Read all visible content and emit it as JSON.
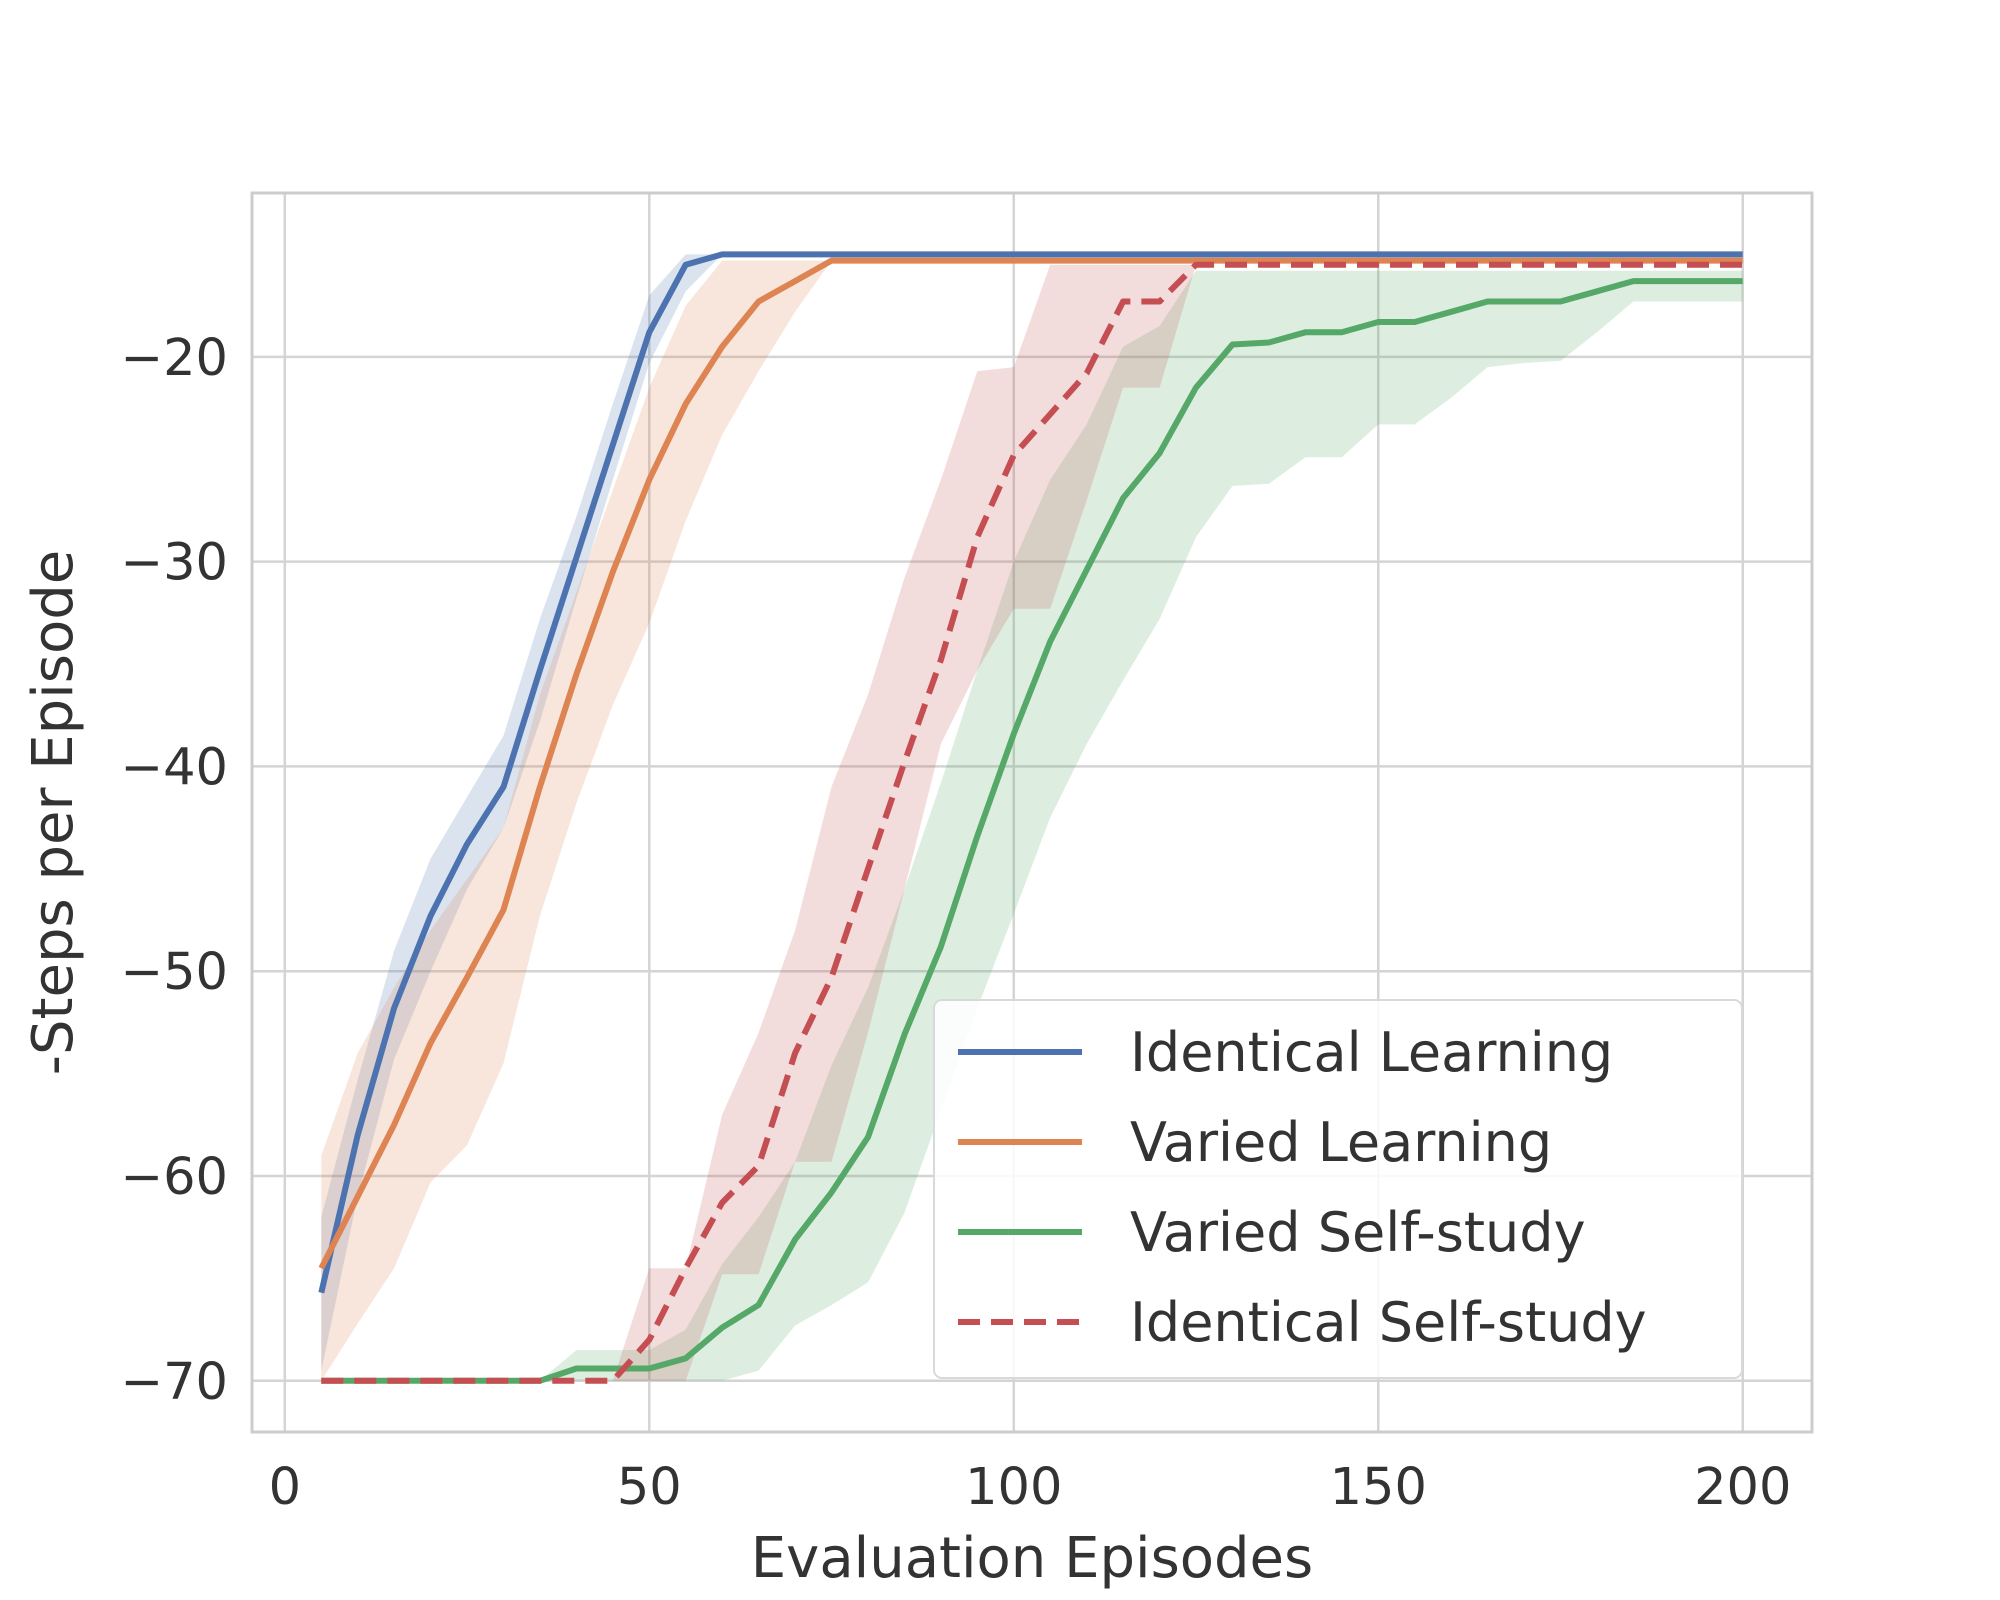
{
  "chart_data": {
    "type": "line",
    "xlabel": "Evaluation Episodes",
    "ylabel": "-Steps per Episode",
    "xlim": [
      -4.5,
      209.5
    ],
    "ylim": [
      -72.5,
      -12
    ],
    "x_ticks": [
      0,
      50,
      100,
      150,
      200
    ],
    "y_ticks": [
      -70,
      -60,
      -50,
      -40,
      -30,
      -20
    ],
    "x_tick_labels": [
      "0",
      "50",
      "100",
      "150",
      "200"
    ],
    "y_tick_labels": [
      "−70",
      "−60",
      "−50",
      "−40",
      "−30",
      "−20"
    ],
    "grid": true,
    "legend_position": "lower-right",
    "x": [
      5,
      10,
      15,
      20,
      25,
      30,
      35,
      40,
      45,
      50,
      55,
      60,
      65,
      70,
      75,
      80,
      85,
      90,
      95,
      100,
      105,
      110,
      115,
      120,
      125,
      130,
      135,
      140,
      145,
      150,
      155,
      160,
      165,
      170,
      175,
      180,
      185,
      190,
      195,
      200
    ],
    "series": [
      {
        "name": "Identical Learning",
        "color": "#4c72b0",
        "dash": false,
        "values": [
          -65.7,
          -58.0,
          -51.8,
          -47.3,
          -43.8,
          -41.0,
          -35.3,
          -29.8,
          -24.3,
          -18.8,
          -15.5,
          -15.0,
          -15.0,
          -15.0,
          -15.0,
          -15.0,
          -15.0,
          -15.0,
          -15.0,
          -15.0,
          -15.0,
          -15.0,
          -15.0,
          -15.0,
          -15.0,
          -15.0,
          -15.0,
          -15.0,
          -15.0,
          -15.0,
          -15.0,
          -15.0,
          -15.0,
          -15.0,
          -15.0,
          -15.0,
          -15.0,
          -15.0,
          -15.0,
          -15.0
        ],
        "lower": [
          -69.5,
          -61.0,
          -54.3,
          -50.0,
          -46.0,
          -43.0,
          -37.8,
          -31.8,
          -26.0,
          -20.3,
          -16.8,
          -15.0,
          -15.0,
          -15.0,
          -15.0,
          -15.0,
          -15.0,
          -15.0,
          -15.0,
          -15.0,
          -15.0,
          -15.0,
          -15.0,
          -15.0,
          -15.0,
          -15.0,
          -15.0,
          -15.0,
          -15.0,
          -15.0,
          -15.0,
          -15.0,
          -15.0,
          -15.0,
          -15.0,
          -15.0,
          -15.0,
          -15.0,
          -15.0,
          -15.0
        ],
        "upper": [
          -62.0,
          -55.3,
          -49.0,
          -44.5,
          -41.5,
          -38.5,
          -32.8,
          -27.8,
          -22.3,
          -17.0,
          -15.0,
          -15.0,
          -15.0,
          -15.0,
          -15.0,
          -15.0,
          -15.0,
          -15.0,
          -15.0,
          -15.0,
          -15.0,
          -15.0,
          -15.0,
          -15.0,
          -15.0,
          -15.0,
          -15.0,
          -15.0,
          -15.0,
          -15.0,
          -15.0,
          -15.0,
          -15.0,
          -15.0,
          -15.0,
          -15.0,
          -15.0,
          -15.0,
          -15.0,
          -15.0
        ]
      },
      {
        "name": "Varied Learning",
        "color": "#dd8452",
        "dash": false,
        "values": [
          -64.5,
          -61.0,
          -57.5,
          -53.5,
          -50.3,
          -47.0,
          -41.0,
          -35.5,
          -30.5,
          -26.0,
          -22.3,
          -19.5,
          -17.3,
          -16.3,
          -15.3,
          -15.3,
          -15.3,
          -15.3,
          -15.3,
          -15.3,
          -15.3,
          -15.3,
          -15.3,
          -15.3,
          -15.3,
          -15.3,
          -15.3,
          -15.3,
          -15.3,
          -15.3,
          -15.3,
          -15.3,
          -15.3,
          -15.3,
          -15.3,
          -15.3,
          -15.3,
          -15.3,
          -15.3,
          -15.3
        ],
        "lower": [
          -70.0,
          -67.2,
          -64.5,
          -60.3,
          -58.5,
          -54.5,
          -47.3,
          -41.8,
          -37.0,
          -33.0,
          -28.0,
          -23.8,
          -20.7,
          -17.8,
          -15.3,
          -15.3,
          -15.3,
          -15.3,
          -15.3,
          -15.3,
          -15.3,
          -15.3,
          -15.3,
          -15.3,
          -15.3,
          -15.3,
          -15.3,
          -15.3,
          -15.3,
          -15.3,
          -15.3,
          -15.3,
          -15.3,
          -15.3,
          -15.3,
          -15.3,
          -15.3,
          -15.3,
          -15.3,
          -15.3
        ],
        "upper": [
          -59.0,
          -54.0,
          -50.8,
          -48.0,
          -45.5,
          -43.0,
          -36.5,
          -31.5,
          -26.5,
          -21.5,
          -17.5,
          -15.3,
          -15.3,
          -15.3,
          -15.3,
          -15.3,
          -15.3,
          -15.3,
          -15.3,
          -15.3,
          -15.3,
          -15.3,
          -15.3,
          -15.3,
          -15.3,
          -15.3,
          -15.3,
          -15.3,
          -15.3,
          -15.3,
          -15.3,
          -15.3,
          -15.3,
          -15.3,
          -15.3,
          -15.3,
          -15.3,
          -15.3,
          -15.3,
          -15.3
        ]
      },
      {
        "name": "Varied Self-study",
        "color": "#55a868",
        "dash": false,
        "values": [
          -70.0,
          -70.0,
          -70.0,
          -70.0,
          -70.0,
          -70.0,
          -70.0,
          -69.4,
          -69.4,
          -69.4,
          -68.9,
          -67.4,
          -66.3,
          -63.1,
          -60.8,
          -58.1,
          -53.1,
          -48.8,
          -43.4,
          -38.4,
          -33.9,
          -30.4,
          -26.9,
          -24.7,
          -21.5,
          -19.4,
          -19.3,
          -18.8,
          -18.8,
          -18.3,
          -18.3,
          -17.8,
          -17.3,
          -17.3,
          -17.3,
          -16.8,
          -16.3,
          -16.3,
          -16.3,
          -16.3
        ],
        "lower": [
          -70.0,
          -70.0,
          -70.0,
          -70.0,
          -70.0,
          -70.0,
          -70.0,
          -70.0,
          -70.0,
          -70.0,
          -70.0,
          -70.0,
          -69.5,
          -67.3,
          -66.3,
          -65.2,
          -61.8,
          -56.8,
          -51.8,
          -47.2,
          -42.5,
          -38.9,
          -35.8,
          -32.8,
          -28.8,
          -26.3,
          -26.2,
          -24.9,
          -24.9,
          -23.3,
          -23.3,
          -22.0,
          -20.5,
          -20.3,
          -20.2,
          -18.8,
          -17.3,
          -17.3,
          -17.3,
          -17.3
        ],
        "upper": [
          -70.0,
          -70.0,
          -70.0,
          -70.0,
          -70.0,
          -70.0,
          -70.0,
          -68.5,
          -68.5,
          -68.5,
          -67.5,
          -64.3,
          -62.0,
          -59.3,
          -54.6,
          -50.8,
          -46.0,
          -40.8,
          -35.3,
          -30.0,
          -26.0,
          -23.3,
          -19.5,
          -18.5,
          -15.8,
          -15.8,
          -15.8,
          -15.8,
          -15.8,
          -15.8,
          -15.8,
          -15.8,
          -15.8,
          -15.8,
          -15.8,
          -15.8,
          -15.8,
          -15.8,
          -15.8,
          -15.8
        ]
      },
      {
        "name": "Identical Self-study",
        "color": "#c44e52",
        "dash": true,
        "values": [
          -70.0,
          -70.0,
          -70.0,
          -70.0,
          -70.0,
          -70.0,
          -70.0,
          -70.0,
          -70.0,
          -68.0,
          -64.5,
          -61.3,
          -59.5,
          -54.0,
          -50.3,
          -45.0,
          -39.8,
          -34.8,
          -28.8,
          -24.8,
          -22.8,
          -20.8,
          -17.3,
          -17.3,
          -15.5,
          -15.5,
          -15.5,
          -15.5,
          -15.5,
          -15.5,
          -15.5,
          -15.5,
          -15.5,
          -15.5,
          -15.5,
          -15.5,
          -15.5,
          -15.5,
          -15.5,
          -15.5
        ],
        "lower": [
          -70.0,
          -70.0,
          -70.0,
          -70.0,
          -70.0,
          -70.0,
          -70.0,
          -70.0,
          -70.0,
          -70.0,
          -70.0,
          -64.8,
          -64.8,
          -59.3,
          -59.3,
          -53.0,
          -46.0,
          -38.9,
          -35.3,
          -32.3,
          -32.3,
          -27.0,
          -21.5,
          -21.5,
          -15.5,
          -15.5,
          -15.5,
          -15.5,
          -15.5,
          -15.5,
          -15.5,
          -15.5,
          -15.5,
          -15.5,
          -15.5,
          -15.5,
          -15.5,
          -15.5,
          -15.5,
          -15.5
        ],
        "upper": [
          -70.0,
          -70.0,
          -70.0,
          -70.0,
          -70.0,
          -70.0,
          -70.0,
          -70.0,
          -70.0,
          -64.5,
          -64.5,
          -57.0,
          -53.0,
          -48.0,
          -41.0,
          -36.5,
          -30.8,
          -26.0,
          -20.7,
          -20.5,
          -15.5,
          -15.5,
          -15.5,
          -15.5,
          -15.5,
          -15.5,
          -15.5,
          -15.5,
          -15.5,
          -15.5,
          -15.5,
          -15.5,
          -15.5,
          -15.5,
          -15.5,
          -15.5,
          -15.5,
          -15.5,
          -15.5,
          -15.5
        ]
      }
    ]
  }
}
